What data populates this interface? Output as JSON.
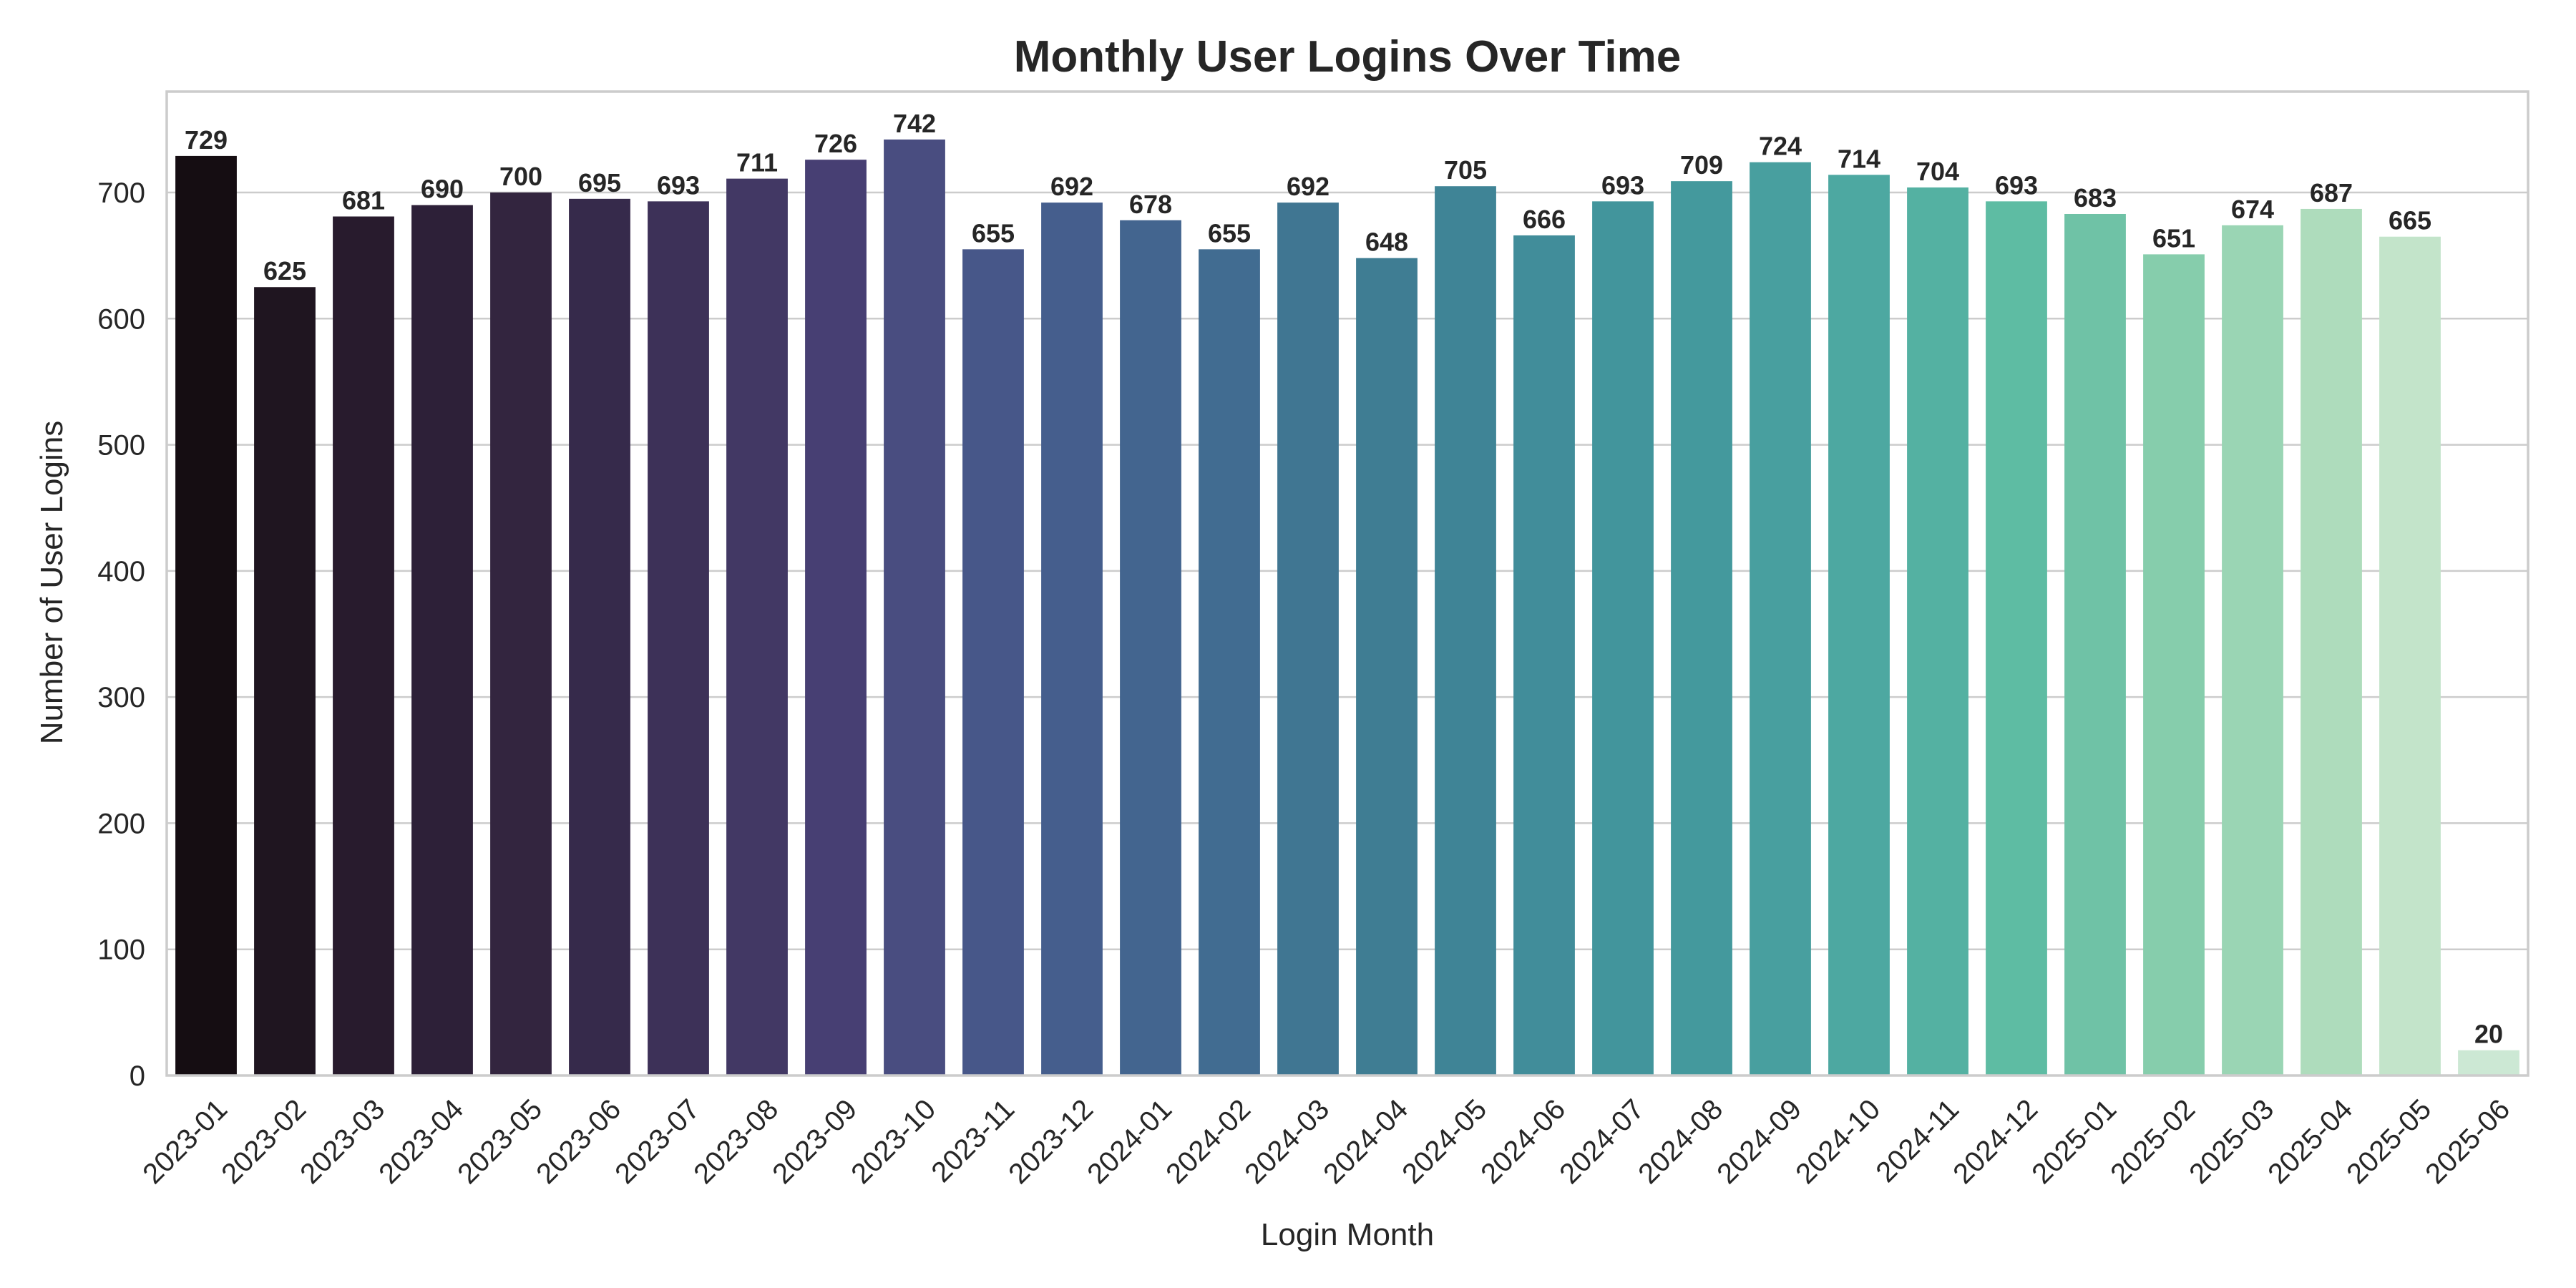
{
  "chart_data": {
    "type": "bar",
    "title": "Monthly User Logins Over Time",
    "xlabel": "Login Month",
    "ylabel": "Number of User Logins",
    "ylim": [
      0,
      780
    ],
    "yticks": [
      0,
      100,
      200,
      300,
      400,
      500,
      600,
      700
    ],
    "grid": "horizontal",
    "legend": "none",
    "categories": [
      "2023-01",
      "2023-02",
      "2023-03",
      "2023-04",
      "2023-05",
      "2023-06",
      "2023-07",
      "2023-08",
      "2023-09",
      "2023-10",
      "2023-11",
      "2023-12",
      "2024-01",
      "2024-02",
      "2024-03",
      "2024-04",
      "2024-05",
      "2024-06",
      "2024-07",
      "2024-08",
      "2024-09",
      "2024-10",
      "2024-11",
      "2024-12",
      "2025-01",
      "2025-02",
      "2025-03",
      "2025-04",
      "2025-05",
      "2025-06"
    ],
    "values": [
      729,
      625,
      681,
      690,
      700,
      695,
      693,
      711,
      726,
      742,
      655,
      692,
      678,
      655,
      692,
      648,
      705,
      666,
      693,
      709,
      724,
      714,
      704,
      693,
      683,
      651,
      674,
      687,
      665,
      20
    ],
    "colors": [
      "#150d12",
      "#1f1520",
      "#281b2d",
      "#2d2038",
      "#33253f",
      "#362a4b",
      "#3d3158",
      "#423864",
      "#473f73",
      "#494d80",
      "#475789",
      "#455e8d",
      "#43658f",
      "#416c91",
      "#407692",
      "#3f7d93",
      "#3f8496",
      "#418d9a",
      "#42959c",
      "#44999d",
      "#489f9f",
      "#4da8a1",
      "#54b1a2",
      "#5ebca3",
      "#6fc2a6",
      "#86cdac",
      "#9ad5b4",
      "#aedcbc",
      "#c3e4ca",
      "#cce8d4"
    ]
  }
}
